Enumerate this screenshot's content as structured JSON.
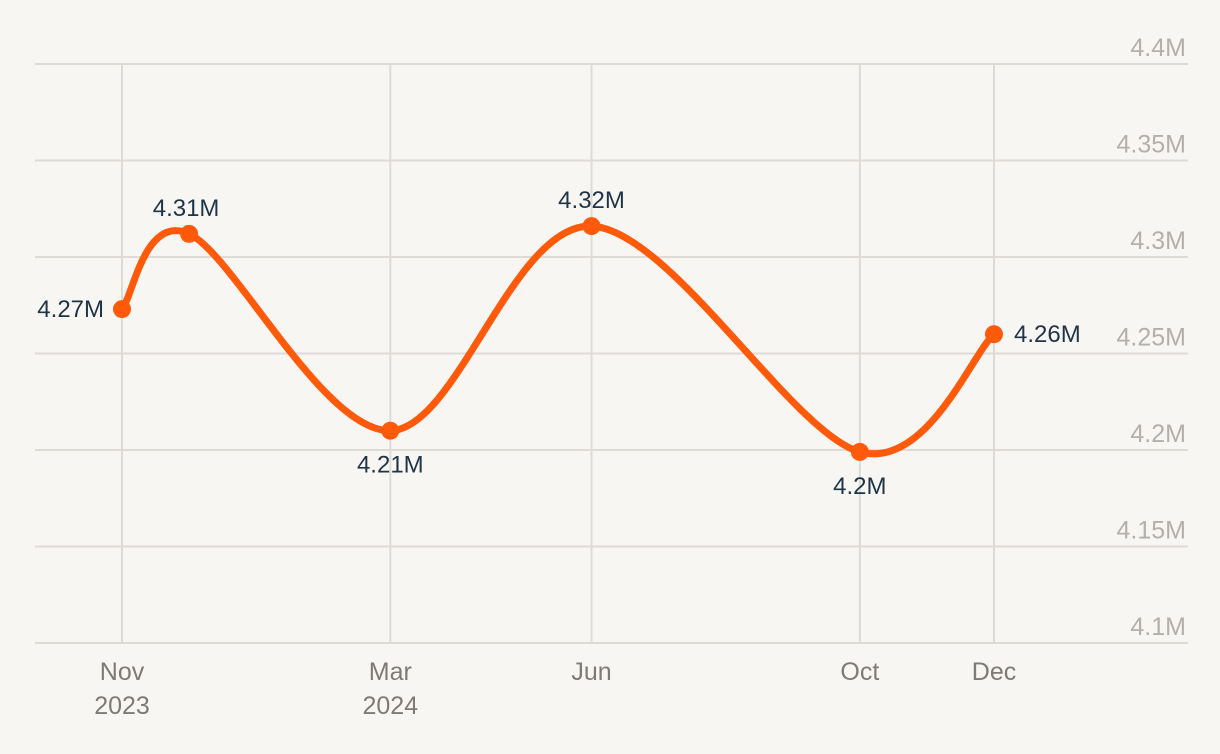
{
  "chart_data": {
    "type": "line",
    "title": "",
    "xlabel": "",
    "ylabel": "",
    "ylim": [
      4.1,
      4.4
    ],
    "y_ticks": [
      "4.1M",
      "4.15M",
      "4.2M",
      "4.25M",
      "4.3M",
      "4.35M",
      "4.4M"
    ],
    "y_axis_position": "right",
    "grid": true,
    "line_style": "smooth",
    "x_ticks": [
      {
        "month": "2023-11",
        "line1": "Nov",
        "line2": "2023"
      },
      {
        "month": "2024-03",
        "line1": "Mar",
        "line2": "2024"
      },
      {
        "month": "2024-06",
        "line1": "Jun",
        "line2": ""
      },
      {
        "month": "2024-10",
        "line1": "Oct",
        "line2": ""
      },
      {
        "month": "2024-12",
        "line1": "Dec",
        "line2": ""
      }
    ],
    "series": [
      {
        "color": "#ff5a0a",
        "points": [
          {
            "x": "2023-11-01",
            "y": 4.273,
            "label": "4.27M"
          },
          {
            "x": "2023-12-01",
            "y": 4.312,
            "label": "4.31M"
          },
          {
            "x": "2024-03-01",
            "y": 4.21,
            "label": "4.21M"
          },
          {
            "x": "2024-06-01",
            "y": 4.316,
            "label": "4.32M"
          },
          {
            "x": "2024-10-01",
            "y": 4.199,
            "label": "4.2M"
          },
          {
            "x": "2024-12-01",
            "y": 4.26,
            "label": "4.26M"
          }
        ]
      }
    ]
  }
}
